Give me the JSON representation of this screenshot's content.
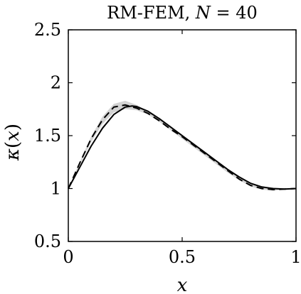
{
  "chart_data": {
    "type": "line",
    "title_prefix": "RM-FEM, ",
    "title_var": "N",
    "title_suffix": " = 40",
    "xlabel": "x",
    "ylabel_var": "κ",
    "ylabel_paren_open": "(",
    "ylabel_arg": "x",
    "ylabel_paren_close": ")",
    "xlim": [
      0,
      1
    ],
    "ylim": [
      0.5,
      2.5
    ],
    "xticks": [
      0,
      0.5,
      1
    ],
    "xtick_labels": [
      "0",
      "0.5",
      "1"
    ],
    "yticks": [
      0.5,
      1,
      1.5,
      2,
      2.5
    ],
    "ytick_labels": [
      "0.5",
      "1",
      "1.5",
      "2",
      "2.5"
    ],
    "grid": false,
    "series": [
      {
        "style": "solid",
        "color": "#000000",
        "x": [
          0,
          0.05,
          0.1,
          0.15,
          0.2,
          0.25,
          0.28,
          0.3,
          0.35,
          0.4,
          0.45,
          0.5,
          0.55,
          0.6,
          0.65,
          0.7,
          0.75,
          0.8,
          0.85,
          0.9,
          0.95,
          1.0
        ],
        "y": [
          1.0,
          1.2,
          1.4,
          1.57,
          1.7,
          1.77,
          1.78,
          1.775,
          1.73,
          1.66,
          1.58,
          1.5,
          1.42,
          1.34,
          1.26,
          1.18,
          1.11,
          1.05,
          1.015,
          1.0,
          0.995,
          1.0
        ]
      },
      {
        "style": "dashed",
        "color": "#000000",
        "x": [
          0,
          0.05,
          0.1,
          0.15,
          0.2,
          0.25,
          0.3,
          0.35,
          0.4,
          0.45,
          0.5,
          0.55,
          0.6,
          0.65,
          0.7,
          0.75,
          0.8,
          0.85,
          0.9,
          0.95,
          1.0
        ],
        "y": [
          1.0,
          1.24,
          1.47,
          1.65,
          1.77,
          1.79,
          1.76,
          1.71,
          1.64,
          1.56,
          1.49,
          1.41,
          1.33,
          1.25,
          1.17,
          1.09,
          1.03,
          1.0,
          0.99,
          0.995,
          1.0
        ]
      }
    ],
    "band": {
      "color": "#c8c8c8",
      "x": [
        0,
        0.05,
        0.1,
        0.15,
        0.2,
        0.25,
        0.3,
        0.35,
        0.4,
        0.45,
        0.5,
        0.55,
        0.6,
        0.65,
        0.7,
        0.75,
        0.8,
        0.85,
        0.9,
        0.95,
        1.0
      ],
      "lower": [
        1.0,
        1.22,
        1.44,
        1.61,
        1.72,
        1.75,
        1.74,
        1.7,
        1.63,
        1.55,
        1.47,
        1.39,
        1.31,
        1.23,
        1.15,
        1.08,
        1.02,
        0.99,
        0.98,
        0.99,
        1.0
      ],
      "upper": [
        1.0,
        1.25,
        1.49,
        1.68,
        1.8,
        1.83,
        1.79,
        1.73,
        1.66,
        1.58,
        1.51,
        1.43,
        1.35,
        1.27,
        1.19,
        1.11,
        1.05,
        1.02,
        1.005,
        1.0,
        1.0
      ]
    }
  }
}
